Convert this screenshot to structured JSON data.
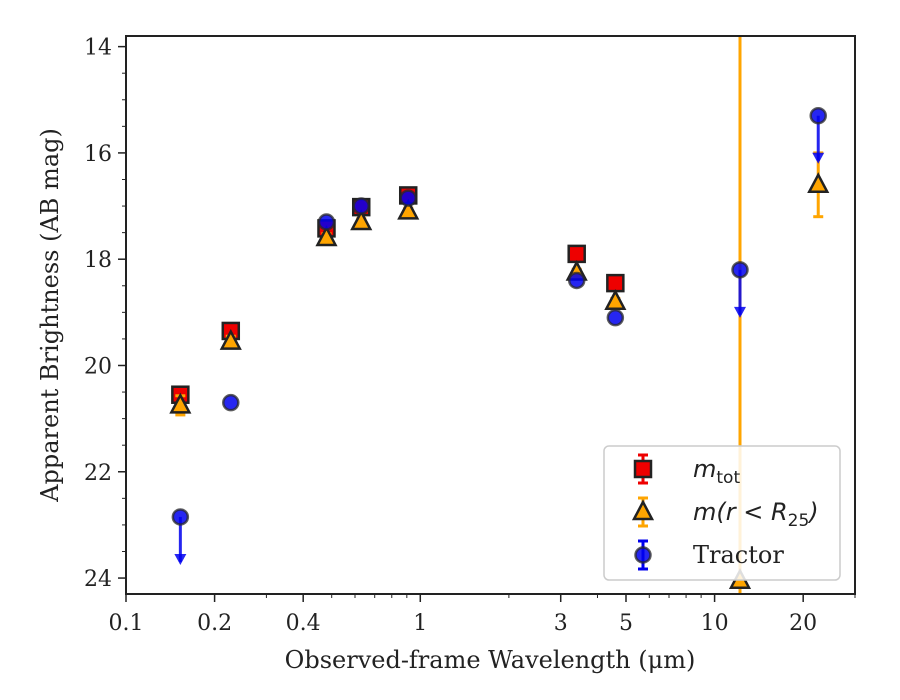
{
  "chart_data": {
    "type": "scatter",
    "xlabel": "Observed-frame Wavelength (μm)",
    "ylabel": "Apparent Brightness (AB mag)",
    "x_scale": "log",
    "xlim": [
      0.1,
      30
    ],
    "ylim": [
      24.3,
      13.8
    ],
    "y_inverted": true,
    "x_ticks": [
      {
        "value": 0.1,
        "label": "0.1"
      },
      {
        "value": 0.2,
        "label": "0.2"
      },
      {
        "value": 0.4,
        "label": "0.4"
      },
      {
        "value": 1,
        "label": "1"
      },
      {
        "value": 3,
        "label": "3"
      },
      {
        "value": 5,
        "label": "5"
      },
      {
        "value": 10,
        "label": "10"
      },
      {
        "value": 20,
        "label": "20"
      }
    ],
    "y_ticks": [
      {
        "value": 14,
        "label": "14"
      },
      {
        "value": 16,
        "label": "16"
      },
      {
        "value": 18,
        "label": "18"
      },
      {
        "value": 20,
        "label": "20"
      },
      {
        "value": 22,
        "label": "22"
      },
      {
        "value": 24,
        "label": "24"
      }
    ],
    "legend_position": "lower-right",
    "series": [
      {
        "name": "m_tot",
        "legend": {
          "base": "m",
          "sub": "tot"
        },
        "marker": "square",
        "color": "#ee0000",
        "points": [
          {
            "x": 0.153,
            "y": 20.55,
            "err": 0.1
          },
          {
            "x": 0.227,
            "y": 19.35,
            "err": 0.1
          },
          {
            "x": 0.48,
            "y": 17.42,
            "err": 0.08
          },
          {
            "x": 0.63,
            "y": 17.02,
            "err": 0.06
          },
          {
            "x": 0.91,
            "y": 16.8,
            "err": 0.06
          },
          {
            "x": 3.4,
            "y": 17.9,
            "err": 0.06
          },
          {
            "x": 4.6,
            "y": 18.45,
            "err": 0.06
          }
        ]
      },
      {
        "name": "m(r<R25)",
        "legend": {
          "base": "m(r < R",
          "sub": "25",
          "tail": ")"
        },
        "marker": "triangle",
        "color": "#ffa500",
        "points": [
          {
            "x": 0.153,
            "y": 20.75,
            "err": 0.18
          },
          {
            "x": 0.227,
            "y": 19.55,
            "err": 0.1
          },
          {
            "x": 0.48,
            "y": 17.6,
            "err": 0.08
          },
          {
            "x": 0.63,
            "y": 17.3,
            "err": 0.06
          },
          {
            "x": 0.91,
            "y": 17.1,
            "err": 0.06
          },
          {
            "x": 3.4,
            "y": 18.25,
            "err": 0.06
          },
          {
            "x": 4.6,
            "y": 18.8,
            "err": 0.06
          },
          {
            "x": 12.2,
            "y": 24.05,
            "err_span": [
              13.8,
              24.3
            ]
          },
          {
            "x": 22.5,
            "y": 16.6,
            "err": 0.6
          }
        ]
      },
      {
        "name": "Tractor",
        "legend": {
          "base": "Tractor"
        },
        "marker": "circle",
        "color": "#0000ee",
        "points": [
          {
            "x": 0.153,
            "y": 22.85,
            "upper_limit": true
          },
          {
            "x": 0.227,
            "y": 20.7
          },
          {
            "x": 0.48,
            "y": 17.3
          },
          {
            "x": 0.63,
            "y": 17.0
          },
          {
            "x": 0.91,
            "y": 16.85
          },
          {
            "x": 3.4,
            "y": 18.4
          },
          {
            "x": 4.6,
            "y": 19.1
          },
          {
            "x": 12.2,
            "y": 18.2,
            "upper_limit": true
          },
          {
            "x": 22.5,
            "y": 15.3,
            "upper_limit": true
          }
        ]
      }
    ]
  }
}
